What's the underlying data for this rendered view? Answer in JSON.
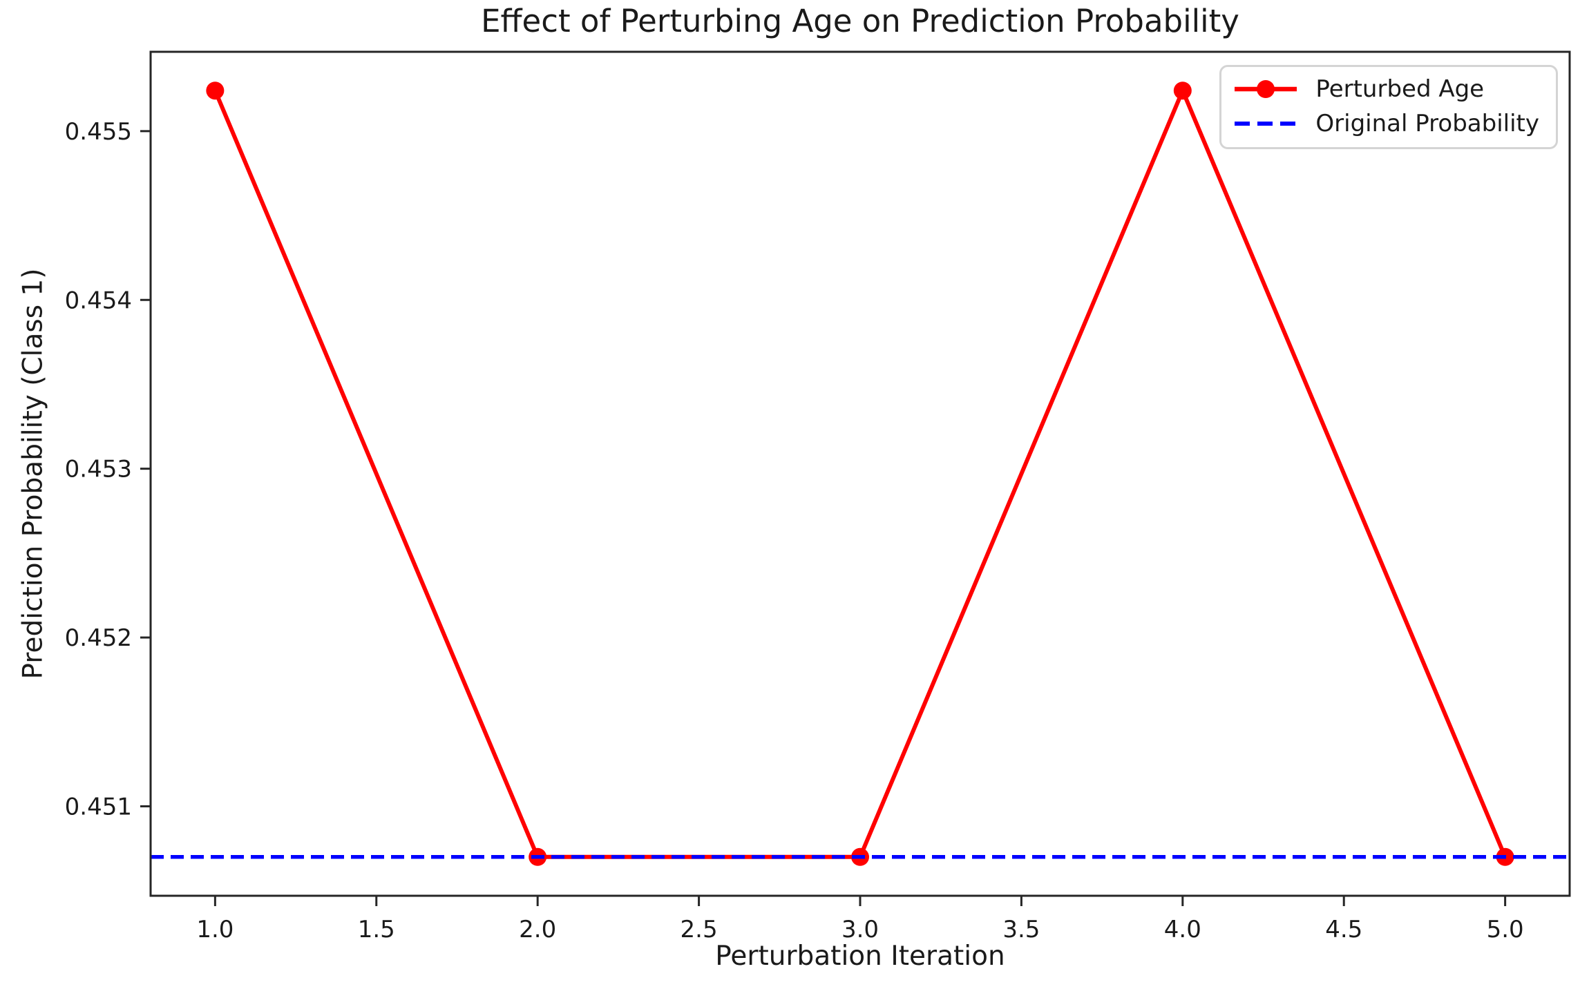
{
  "chart_data": {
    "type": "line",
    "title": "Effect of Perturbing Age on Prediction Probability",
    "xlabel": "Perturbation Iteration",
    "ylabel": "Prediction Probability (Class 1)",
    "x": [
      1,
      2,
      3,
      4,
      5
    ],
    "series": [
      {
        "name": "Perturbed Age",
        "color": "#ff0000",
        "style": "solid-line-circle-markers",
        "values": [
          0.45524,
          0.4507,
          0.4507,
          0.45524,
          0.4507
        ]
      },
      {
        "name": "Original Probability",
        "color": "#0000ff",
        "style": "dashed-horizontal-line",
        "value": 0.4507
      }
    ],
    "xlim": [
      0.8,
      5.2
    ],
    "ylim": [
      0.45047,
      0.45547
    ],
    "xticks": {
      "values": [
        1.0,
        1.5,
        2.0,
        2.5,
        3.0,
        3.5,
        4.0,
        4.5,
        5.0
      ],
      "labels": [
        "1.0",
        "1.5",
        "2.0",
        "2.5",
        "3.0",
        "3.5",
        "4.0",
        "4.5",
        "5.0"
      ]
    },
    "yticks": {
      "values": [
        0.451,
        0.452,
        0.453,
        0.454,
        0.455
      ],
      "labels": [
        "0.451",
        "0.452",
        "0.453",
        "0.454",
        "0.455"
      ]
    },
    "legend": {
      "position": "upper right",
      "entries": [
        "Perturbed Age",
        "Original Probability"
      ]
    },
    "grid": false,
    "colors": {
      "axis": "#262626",
      "text": "#1a1a1a",
      "legend_border": "#d4d4d4",
      "background": "#ffffff"
    }
  }
}
